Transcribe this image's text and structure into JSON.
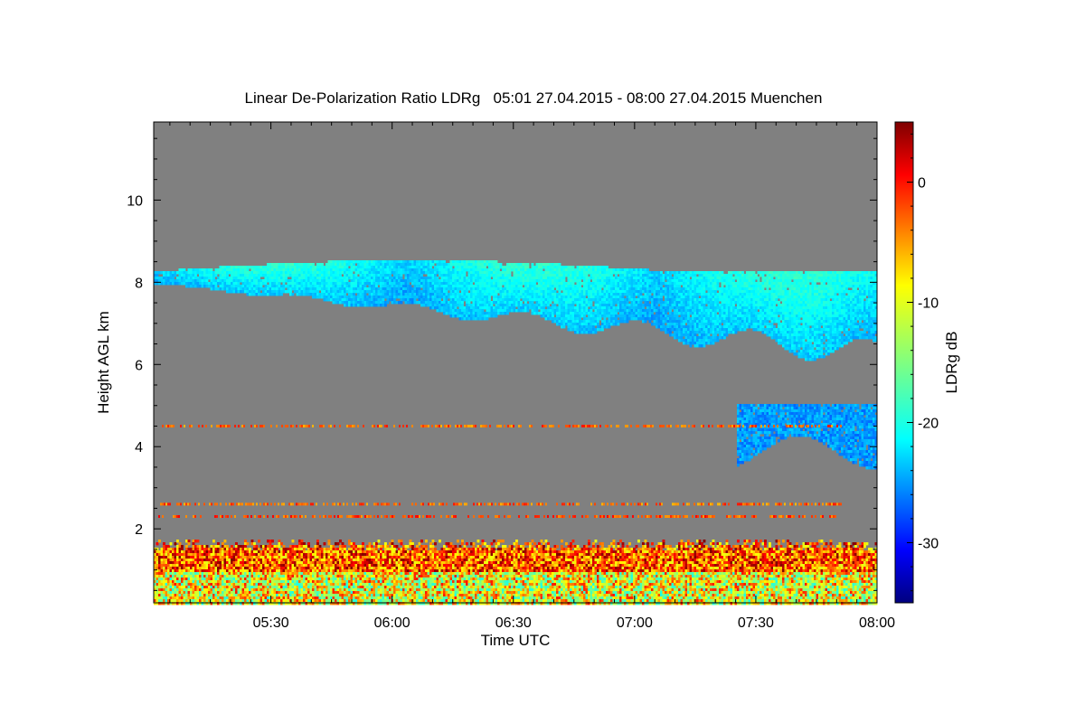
{
  "chart_data": {
    "type": "heatmap",
    "title": "Linear De-Polarization Ratio LDRg   05:01 27.04.2015 - 08:00 27.04.2015 Muenchen",
    "xlabel": "Time UTC",
    "ylabel": "Height AGL km",
    "colorbar_label": "LDRg dB",
    "x_tick_labels": [
      "05:30",
      "06:00",
      "06:30",
      "07:00",
      "07:30",
      "08:00"
    ],
    "x_tick_minutes": [
      330,
      360,
      390,
      420,
      450,
      480
    ],
    "xlim_minutes": [
      301,
      480
    ],
    "y_tick_labels": [
      "2",
      "4",
      "6",
      "8",
      "10"
    ],
    "y_tick_values": [
      2,
      4,
      6,
      8,
      10
    ],
    "ylim": [
      0.2,
      11.9
    ],
    "colorbar_tick_labels": [
      "0",
      "-10",
      "-20",
      "-30"
    ],
    "colorbar_tick_values": [
      0,
      -10,
      -20,
      -30
    ],
    "colorbar_range": [
      -35,
      5
    ],
    "background_color": "#808080",
    "colormap": [
      "#00007f",
      "#0000ff",
      "#0080ff",
      "#00ffff",
      "#80ff80",
      "#ffff00",
      "#ff8000",
      "#ff0000",
      "#7f0000"
    ],
    "features": [
      {
        "name": "cirrus layer",
        "x_range": [
          301,
          480
        ],
        "top_km": [
          8.3,
          8.6
        ],
        "base_km": [
          8.0,
          6.3
        ],
        "ldr_db": [
          -26,
          -21
        ]
      },
      {
        "name": "lower ice cloud",
        "x_range": [
          445,
          480
        ],
        "height_km": [
          3.9,
          5.1
        ],
        "ldr_db": [
          -27,
          -23
        ]
      },
      {
        "name": "near-surface aerosol",
        "x_range": [
          301,
          480
        ],
        "height_km": [
          0.2,
          1.8
        ],
        "ldr_db": [
          -20,
          5
        ]
      },
      {
        "name": "noise line",
        "height_km": 4.5,
        "ldr_db": -3
      },
      {
        "name": "noise line",
        "height_km": 2.6,
        "ldr_db": -3
      },
      {
        "name": "noise line",
        "height_km": 2.3,
        "ldr_db": -2
      }
    ]
  }
}
